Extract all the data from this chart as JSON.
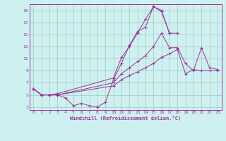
{
  "xlabel": "Windchill (Refroidissement éolien,°C)",
  "background_color": "#cff0f0",
  "grid_color": "#99ccbb",
  "line_color": "#993399",
  "xlim": [
    -0.5,
    23.5
  ],
  "ylim": [
    2.5,
    20
  ],
  "yticks": [
    3,
    5,
    7,
    9,
    11,
    13,
    15,
    17,
    19
  ],
  "xticks": [
    0,
    1,
    2,
    3,
    4,
    5,
    6,
    7,
    8,
    9,
    10,
    11,
    12,
    13,
    14,
    15,
    16,
    17,
    18,
    19,
    20,
    21,
    22,
    23
  ],
  "line1_x": [
    0,
    1,
    2,
    3,
    4,
    5,
    6,
    7,
    8,
    9,
    10,
    11,
    12,
    13,
    14,
    15,
    16,
    17
  ],
  "line1_y": [
    6,
    5,
    5,
    5,
    4.5,
    3.2,
    3.6,
    3.2,
    3.0,
    3.8,
    7.5,
    10.2,
    13.2,
    15.5,
    16.2,
    19.6,
    19.0,
    15.2
  ],
  "line2_x": [
    0,
    1,
    2,
    3,
    10,
    11,
    12,
    13,
    14,
    15,
    16,
    17,
    18
  ],
  "line2_y": [
    6,
    5,
    5,
    5.2,
    7.8,
    11.2,
    13.0,
    15.2,
    17.5,
    19.6,
    18.8,
    15.2,
    15.2
  ],
  "line3_x": [
    0,
    1,
    2,
    3,
    10,
    11,
    12,
    13,
    14,
    15,
    16,
    17,
    18,
    19,
    20,
    21,
    22,
    23
  ],
  "line3_y": [
    6,
    5,
    5,
    5,
    7.0,
    8.5,
    9.5,
    10.5,
    11.5,
    13.0,
    15.2,
    12.8,
    12.8,
    10.2,
    9.0,
    12.8,
    9.5,
    9.2
  ],
  "line4_x": [
    0,
    1,
    2,
    3,
    10,
    11,
    12,
    13,
    14,
    15,
    16,
    17,
    18,
    19,
    20,
    21,
    22,
    23
  ],
  "line4_y": [
    6,
    5,
    5,
    5,
    6.5,
    7.5,
    8.2,
    8.8,
    9.5,
    10.2,
    11.2,
    11.8,
    12.5,
    8.5,
    9.2,
    9.0,
    9.0,
    9.0
  ]
}
